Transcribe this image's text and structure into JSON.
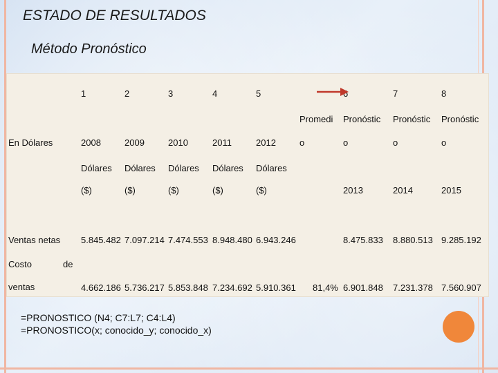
{
  "title": "ESTADO DE RESULTADOS",
  "subtitle": "Método Pronóstico",
  "table": {
    "row_label_currency": "En Dólares",
    "row_label_sales": "Ventas netas",
    "row_label_cost_part1": "Costo",
    "row_label_cost_part2": "de",
    "row_label_cost_part3": "ventas",
    "column_numbers": [
      "1",
      "2",
      "3",
      "4",
      "5",
      "6",
      "7",
      "8"
    ],
    "column_types_line1": [
      "Promedi",
      "Pronóstic",
      "Pronóstic",
      "Pronóstic"
    ],
    "column_types_line2": [
      "o",
      "o",
      "o",
      "o"
    ],
    "years": [
      "2008",
      "2009",
      "2010",
      "2011",
      "2012"
    ],
    "units_line1": [
      "Dólares",
      "Dólares",
      "Dólares",
      "Dólares",
      "Dólares"
    ],
    "units_line2": [
      "($)",
      "($)",
      "($)",
      "($)",
      "($)"
    ],
    "forecast_years": [
      "2013",
      "2014",
      "2015"
    ],
    "sales_values": [
      "5.845.482",
      "7.097.214",
      "7.474.553",
      "8.948.480",
      "6.943.246",
      "8.475.833",
      "8.880.513",
      "9.285.192"
    ],
    "cost_values": [
      "4.662.186",
      "5.736.217",
      "5.853.848",
      "7.234.692",
      "5.910.361",
      "6.901.848",
      "7.231.378",
      "7.560.907"
    ],
    "cost_average": "81,4%"
  },
  "formulas": {
    "line1": "=PRONOSTICO (N4; C7:L7; C4:L4)",
    "line2": "=PRONOSTICO(x; conocido_y; conocido_x)"
  },
  "colors": {
    "arrow": "#c0392b",
    "circle": "#f0873a",
    "frame": "#f0b6a2"
  }
}
